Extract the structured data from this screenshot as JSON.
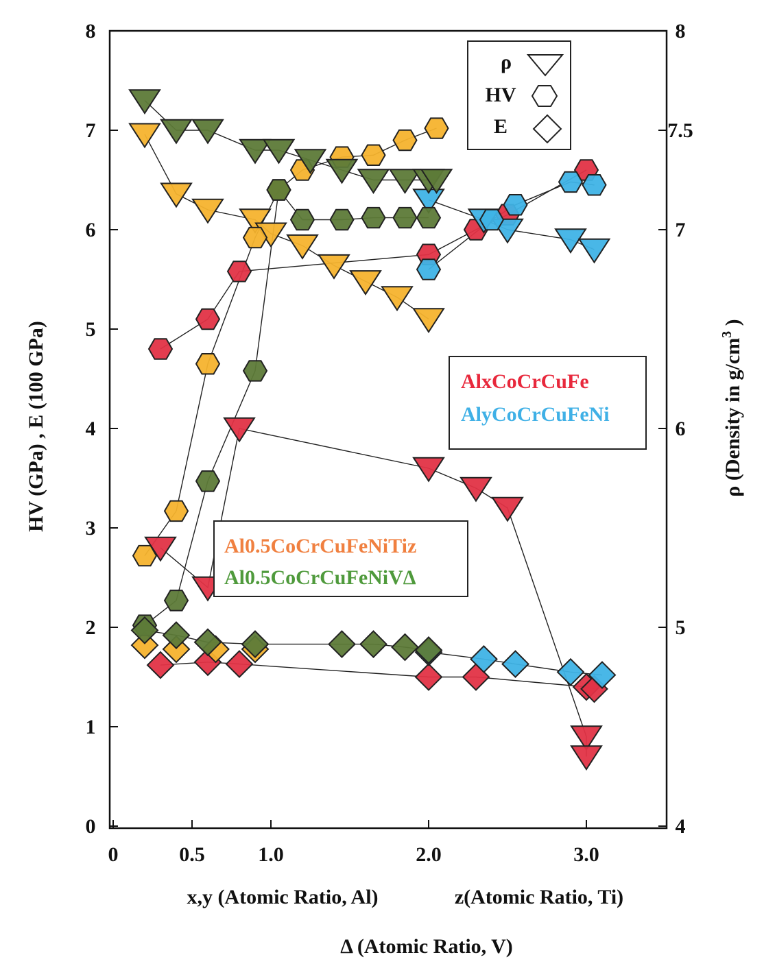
{
  "chart_data": {
    "type": "scatter",
    "title": "",
    "x_axis": {
      "labels": [
        "x,y (Atomic Ratio, Al)",
        "z(Atomic Ratio, Ti)",
        "Δ (Atomic Ratio, V)"
      ],
      "ticks": [
        0,
        0.5,
        1.0,
        2.0,
        3.0
      ],
      "tick_labels": [
        "0",
        "0.5",
        "1.0",
        "2.0",
        "3.0"
      ],
      "range": [
        0,
        3.5
      ]
    },
    "y_left": {
      "label": "HV (GPa) , E (100 GPa)",
      "ticks": [
        0,
        1,
        2,
        3,
        4,
        5,
        6,
        7,
        8
      ],
      "tick_labels": [
        "0",
        "1",
        "2",
        "3",
        "4",
        "5",
        "6",
        "7",
        "8"
      ],
      "range": [
        0,
        8
      ]
    },
    "y_right": {
      "label_main": "ρ (Density in g/cm",
      "label_sup": "3",
      "label_end": " )",
      "ticks": [
        4,
        5,
        6,
        7,
        7.5,
        8
      ],
      "tick_labels": [
        "4",
        "5",
        "6",
        "7",
        "7.5",
        "8"
      ],
      "range": [
        4,
        8
      ]
    },
    "grid": false,
    "legend_marker": {
      "placement": "top-right",
      "entries": [
        {
          "label": "ρ",
          "marker": "triangle-down"
        },
        {
          "label": "HV",
          "marker": "hexagon"
        },
        {
          "label": "E",
          "marker": "diamond"
        }
      ]
    },
    "legend_alloys_1": {
      "placement": "right",
      "entries": [
        {
          "label": "AlxCoCrCuFe",
          "color": "#e8283c"
        },
        {
          "label": "AlyCoCrCuFeNi",
          "color": "#3fb0e6"
        }
      ]
    },
    "legend_alloys_2": {
      "placement": "center-left",
      "entries": [
        {
          "label": "Al0.5CoCrCuFeNiTiz",
          "color": "#f08040"
        },
        {
          "label": "Al0.5CoCrCuFeNiVΔ",
          "color": "#4f9a3c"
        }
      ]
    },
    "colors": {
      "red": "#e23346",
      "blue": "#3fb3e6",
      "orange": "#f5b32e",
      "green": "#5d7a38"
    },
    "series": [
      {
        "alloy": "AlxCoCrCuFe",
        "property": "ρ",
        "axis": "right",
        "color": "red",
        "marker": "triangle-down",
        "connected": true,
        "x": [
          0.3,
          0.6,
          0.8,
          2.0,
          2.3,
          2.5,
          3.0,
          3.0
        ],
        "y": [
          5.4,
          5.2,
          6.0,
          5.8,
          5.7,
          5.6,
          4.45,
          4.35
        ]
      },
      {
        "alloy": "AlxCoCrCuFe",
        "property": "HV",
        "axis": "left",
        "color": "red",
        "marker": "hexagon",
        "connected": true,
        "x": [
          0.3,
          0.6,
          0.8,
          2.0,
          2.3,
          2.5,
          3.0
        ],
        "y": [
          4.8,
          5.1,
          5.58,
          5.75,
          6.0,
          6.15,
          6.6
        ]
      },
      {
        "alloy": "AlxCoCrCuFe",
        "property": "E",
        "axis": "left",
        "color": "red",
        "marker": "diamond",
        "connected": true,
        "x": [
          0.3,
          0.6,
          0.8,
          2.0,
          2.3,
          3.0,
          3.05
        ],
        "y": [
          1.62,
          1.65,
          1.63,
          1.5,
          1.5,
          1.4,
          1.38
        ]
      },
      {
        "alloy": "AlyCoCrCuFeNi",
        "property": "ρ",
        "axis": "right",
        "color": "blue",
        "marker": "triangle-down",
        "connected": true,
        "x": [
          2.0,
          2.35,
          2.5,
          2.9,
          3.05
        ],
        "y": [
          7.15,
          7.05,
          7.0,
          6.95,
          6.9
        ]
      },
      {
        "alloy": "AlyCoCrCuFeNi",
        "property": "HV",
        "axis": "left",
        "color": "blue",
        "marker": "hexagon",
        "connected": true,
        "x": [
          2.0,
          2.4,
          2.55,
          2.9,
          3.05
        ],
        "y": [
          5.6,
          6.1,
          6.25,
          6.48,
          6.45
        ]
      },
      {
        "alloy": "AlyCoCrCuFeNi",
        "property": "E",
        "axis": "left",
        "color": "blue",
        "marker": "diamond",
        "connected": true,
        "x": [
          2.0,
          2.35,
          2.55,
          2.9,
          3.1
        ],
        "y": [
          1.75,
          1.68,
          1.63,
          1.55,
          1.52
        ]
      },
      {
        "alloy": "Al0.5CoCrCuFeNiTiz",
        "property": "ρ",
        "axis": "right",
        "color": "orange",
        "marker": "triangle-down",
        "connected": true,
        "x": [
          0.2,
          0.4,
          0.6,
          0.9,
          1.0,
          1.2,
          1.4,
          1.6,
          1.8,
          2.0
        ],
        "y": [
          7.48,
          7.18,
          7.1,
          7.05,
          6.98,
          6.92,
          6.82,
          6.74,
          6.66,
          6.55
        ]
      },
      {
        "alloy": "Al0.5CoCrCuFeNiTiz",
        "property": "HV",
        "axis": "left",
        "color": "orange",
        "marker": "hexagon",
        "connected": true,
        "x": [
          0.2,
          0.4,
          0.6,
          0.9,
          1.05,
          1.2,
          1.45,
          1.65,
          1.85,
          2.05
        ],
        "y": [
          2.72,
          3.17,
          4.65,
          5.92,
          6.4,
          6.6,
          6.73,
          6.75,
          6.9,
          7.02
        ]
      },
      {
        "alloy": "Al0.5CoCrCuFeNiTiz",
        "property": "E",
        "axis": "left",
        "color": "orange",
        "marker": "diamond",
        "connected": false,
        "x": [
          0.2,
          0.4,
          0.65,
          0.9
        ],
        "y": [
          1.82,
          1.78,
          1.78,
          1.78
        ]
      },
      {
        "alloy": "Al0.5CoCrCuFeNiVΔ",
        "property": "ρ",
        "axis": "right",
        "color": "green",
        "marker": "triangle-down",
        "connected": true,
        "x": [
          0.2,
          0.4,
          0.6,
          0.9,
          1.05,
          1.25,
          1.45,
          1.65,
          1.85,
          2.0,
          2.05
        ],
        "y": [
          7.65,
          7.5,
          7.5,
          7.4,
          7.4,
          7.35,
          7.3,
          7.25,
          7.25,
          7.25,
          7.25
        ]
      },
      {
        "alloy": "Al0.5CoCrCuFeNiVΔ",
        "property": "HV",
        "axis": "left",
        "color": "green",
        "marker": "hexagon",
        "connected": true,
        "x": [
          0.2,
          0.4,
          0.6,
          0.9,
          1.05,
          1.2,
          1.45,
          1.65,
          1.85,
          2.0
        ],
        "y": [
          2.02,
          2.27,
          3.47,
          4.58,
          6.4,
          6.1,
          6.1,
          6.12,
          6.12,
          6.12
        ]
      },
      {
        "alloy": "Al0.5CoCrCuFeNiVΔ",
        "property": "E",
        "axis": "left",
        "color": "green",
        "marker": "diamond",
        "connected": true,
        "x": [
          0.2,
          0.4,
          0.6,
          0.9,
          1.45,
          1.65,
          1.85,
          2.0
        ],
        "y": [
          1.97,
          1.92,
          1.85,
          1.83,
          1.83,
          1.83,
          1.8,
          1.77
        ]
      }
    ]
  }
}
